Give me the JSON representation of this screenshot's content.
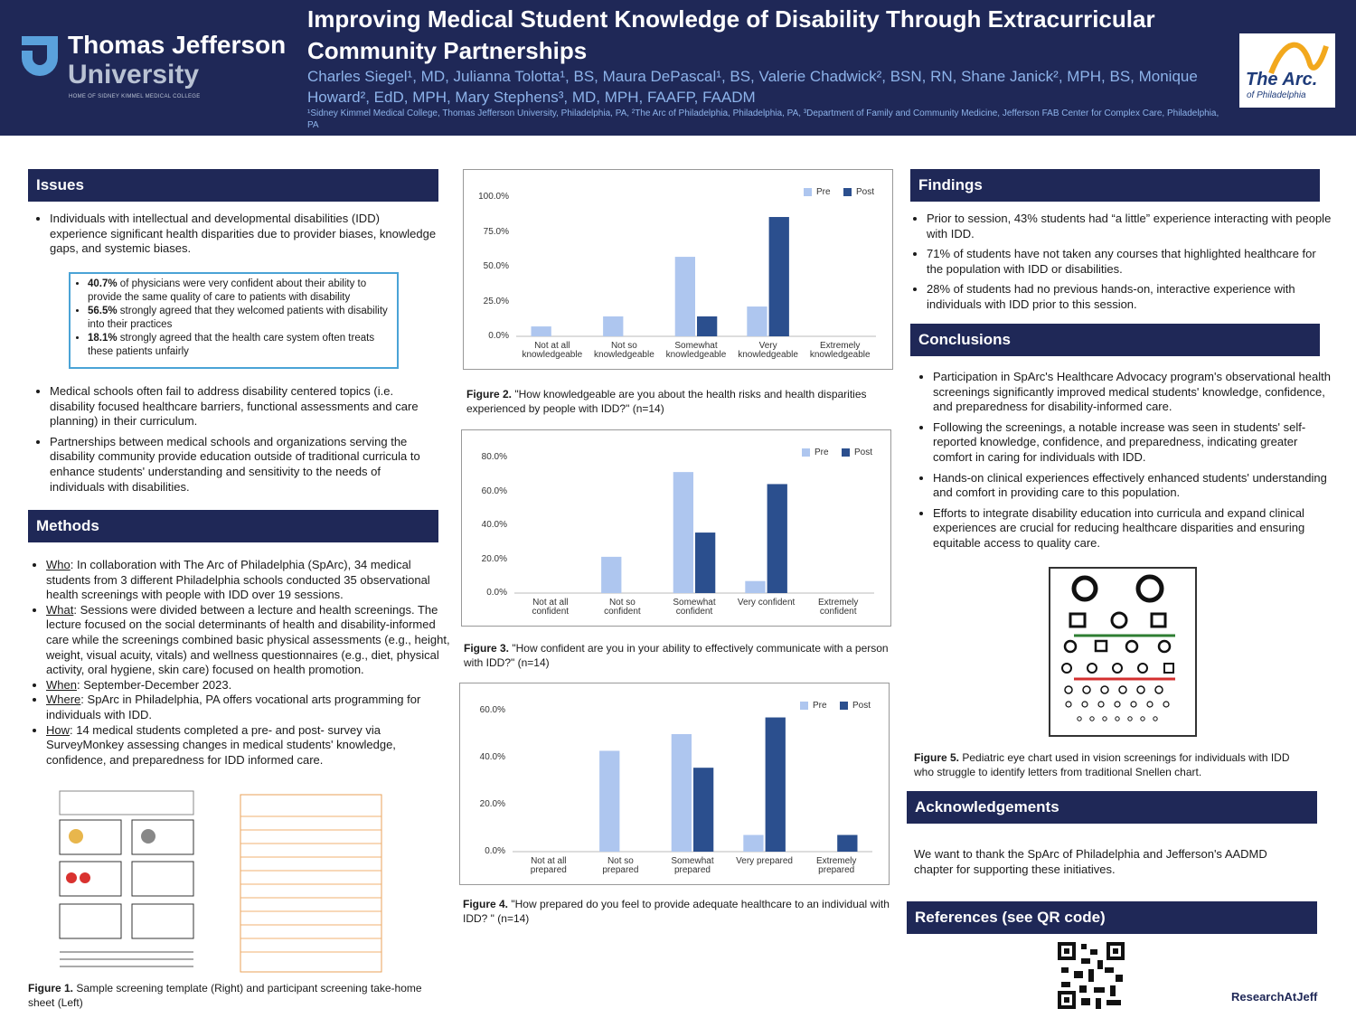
{
  "header": {
    "title": "Improving Medical Student Knowledge of Disability Through Extracurricular Community Partnerships",
    "authors": "Charles Siegel¹, MD, Julianna Tolotta¹, BS, Maura DePascal¹, BS, Valerie Chadwick², BSN, RN, Shane Janick², MPH, BS, Monique Howard², EdD, MPH, Mary Stephens³, MD, MPH, FAAFP, FAADM",
    "affiliations": "¹Sidney Kimmel Medical College, Thomas Jefferson University, Philadelphia, PA, ²The Arc of Philadelphia, Philadelphia, PA, ³Department of Family and Community Medicine, Jefferson FAB Center for Complex Care, Philadelphia, PA",
    "logo_left": {
      "line1": "Thomas Jefferson",
      "line2": "University",
      "tagline": "HOME OF SIDNEY KIMMEL MEDICAL COLLEGE"
    },
    "logo_right": {
      "name": "The Arc.",
      "sub": "of Philadelphia"
    }
  },
  "issues": {
    "heading": "Issues",
    "bullets_top": [
      "Individuals with intellectual and developmental disabilities (IDD) experience significant health disparities due to provider biases, knowledge gaps, and systemic biases."
    ],
    "box": [
      {
        "bold": "40.7%",
        "text": " of physicians were very confident about their ability to provide the same quality of care to patients with disability"
      },
      {
        "bold": "56.5%",
        "text": " strongly agreed that they welcomed patients with disability into their practices"
      },
      {
        "bold": "18.1%",
        "text": " strongly agreed that the health care system often treats these patients unfairly"
      }
    ],
    "bullets_bottom": [
      "Medical schools often fail to address disability centered topics (i.e. disability focused healthcare barriers, functional assessments and care planning) in their curriculum.",
      "Partnerships between medical schools and organizations serving the disability community provide education outside of traditional curricula to enhance students' understanding and sensitivity to the needs of individuals with disabilities."
    ]
  },
  "methods": {
    "heading": "Methods",
    "items": [
      {
        "label": "Who",
        "text": ": In collaboration with The Arc of Philadelphia (SpArc), 34 medical students from 3 different Philadelphia schools conducted 35 observational health screenings with people with IDD over 19 sessions."
      },
      {
        "label": "What",
        "text": ": Sessions were divided between a lecture and health screenings. The lecture focused on the social determinants of health and disability-informed care while the screenings combined basic physical assessments (e.g., height, weight, visual acuity, vitals) and wellness questionnaires (e.g., diet, physical activity, oral hygiene, skin care) focused on health promotion."
      },
      {
        "label": "When",
        "text": ": September-December 2023."
      },
      {
        "label": "Where",
        "text": ": SpArc in Philadelphia, PA offers vocational arts programming for individuals with IDD."
      },
      {
        "label": "How",
        "text": ": 14 medical students completed a pre- and post- survey via SurveyMonkey assessing changes in medical students' knowledge, confidence, and preparedness for IDD informed care."
      }
    ],
    "figure": {
      "label": "Figure 1.",
      "caption": " Sample screening template (Right) and participant screening take-home sheet (Left)"
    }
  },
  "chart_data": [
    {
      "type": "bar",
      "caption_label": "Figure 2.",
      "caption": " \"How knowledgeable are you about the health risks and health disparities experienced by people with IDD?\" (n=14)",
      "categories": [
        "Not at all\nknowledgeable",
        "Not so\nknowledgeable",
        "Somewhat\nknowledgeable",
        "Very\nknowledgeable",
        "Extremely\nknowledgeable"
      ],
      "series": [
        {
          "name": "Pre",
          "color": "#aec6ef",
          "values": [
            7.1,
            14.3,
            57.1,
            21.4,
            0
          ]
        },
        {
          "name": "Post",
          "color": "#2b4f8e",
          "values": [
            0,
            0,
            14.3,
            85.7,
            0
          ]
        }
      ],
      "ylim": [
        0,
        100
      ],
      "yticks": [
        {
          "value": 0,
          "label": "0.0%"
        },
        {
          "value": 25,
          "label": "25.0%"
        },
        {
          "value": 50,
          "label": "50.0%"
        },
        {
          "value": 75,
          "label": "75.0%"
        },
        {
          "value": 100,
          "label": "100.0%"
        }
      ],
      "grid": false,
      "legend": "top-right"
    },
    {
      "type": "bar",
      "caption_label": "Figure 3.",
      "caption": " \"How confident are you in your ability to effectively communicate with a person with IDD?\" (n=14)",
      "categories": [
        "Not at all\nconfident",
        "Not so\nconfident",
        "Somewhat\nconfident",
        "Very confident",
        "Extremely\nconfident"
      ],
      "series": [
        {
          "name": "Pre",
          "color": "#aec6ef",
          "values": [
            0,
            21.4,
            71.4,
            7.1,
            0
          ]
        },
        {
          "name": "Post",
          "color": "#2b4f8e",
          "values": [
            0,
            0,
            35.7,
            64.3,
            0
          ]
        }
      ],
      "ylim": [
        0,
        80
      ],
      "yticks": [
        {
          "value": 0,
          "label": "0.0%"
        },
        {
          "value": 20,
          "label": "20.0%"
        },
        {
          "value": 40,
          "label": "40.0%"
        },
        {
          "value": 60,
          "label": "60.0%"
        },
        {
          "value": 80,
          "label": "80.0%"
        }
      ],
      "grid": false,
      "legend": "top-right"
    },
    {
      "type": "bar",
      "caption_label": "Figure 4.",
      "caption": " \"How prepared do you feel to provide adequate healthcare to an individual with IDD? \" (n=14)",
      "categories": [
        "Not at all\nprepared",
        "Not so\nprepared",
        "Somewhat\nprepared",
        "Very prepared",
        "Extremely\nprepared"
      ],
      "series": [
        {
          "name": "Pre",
          "color": "#aec6ef",
          "values": [
            0,
            42.9,
            50,
            7.1,
            0
          ]
        },
        {
          "name": "Post",
          "color": "#2b4f8e",
          "values": [
            0,
            0,
            35.7,
            57.1,
            7.1
          ]
        }
      ],
      "ylim": [
        0,
        60
      ],
      "yticks": [
        {
          "value": 0,
          "label": "0.0%"
        },
        {
          "value": 20,
          "label": "20.0%"
        },
        {
          "value": 40,
          "label": "40.0%"
        },
        {
          "value": 60,
          "label": "60.0%"
        }
      ],
      "grid": false,
      "legend": "top-right"
    }
  ],
  "findings": {
    "heading": "Findings",
    "bullets": [
      "Prior to session, 43% students had “a little” experience interacting with people with IDD.",
      "71% of students have not taken any courses that highlighted healthcare for the population with IDD or disabilities.",
      "28% of students had no previous hands-on, interactive experience with individuals with IDD prior to this session."
    ]
  },
  "conclusions": {
    "heading": "Conclusions",
    "bullets": [
      "Participation in SpArc's Healthcare Advocacy program's observational health screenings significantly improved medical students' knowledge, confidence, and preparedness for disability-informed care.",
      "Following the screenings, a notable increase was seen in students' self-reported knowledge, confidence, and preparedness, indicating greater comfort in caring for individuals with IDD.",
      "Hands-on clinical experiences effectively enhanced students' understanding and comfort in providing care to this population.",
      "Efforts to integrate disability education into curricula and expand clinical experiences are crucial for reducing healthcare disparities and ensuring equitable access to quality care."
    ],
    "figure": {
      "label": "Figure 5.",
      "caption": " Pediatric eye chart used in vision screenings for individuals with IDD who struggle to identify letters from traditional Snellen chart."
    }
  },
  "acknowledgements": {
    "heading": "Acknowledgements",
    "text": "We want to thank the SpArc of Philadelphia and Jefferson's AADMD chapter for supporting these initiatives."
  },
  "references": {
    "heading": "References (see QR code)"
  },
  "footer": {
    "brand": "ResearchAtJeff"
  }
}
